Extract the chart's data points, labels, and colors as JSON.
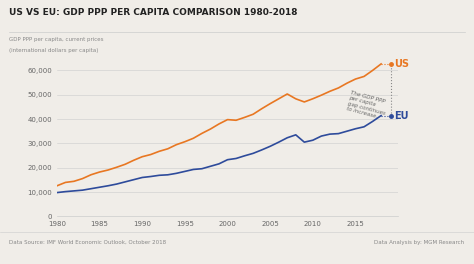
{
  "title": "US VS EU: GDP PPP PER CAPITA COMPARISON 1980-2018",
  "ylabel_line1": "GDP PPP per capita, current prices",
  "ylabel_line2": "(international dollars per capita)",
  "footnote_left": "Data Source: IMF World Economic Outlook, October 2018",
  "footnote_right": "Data Analysis by: MGM Research",
  "annotation_text": "The GDP PPP\nper capita\ngap continues\nto increase.",
  "background_color": "#f0ede8",
  "us_color": "#e87722",
  "eu_color": "#2e4b9b",
  "years": [
    1980,
    1981,
    1982,
    1983,
    1984,
    1985,
    1986,
    1987,
    1988,
    1989,
    1990,
    1991,
    1992,
    1993,
    1994,
    1995,
    1996,
    1997,
    1998,
    1999,
    2000,
    2001,
    2002,
    2003,
    2004,
    2005,
    2006,
    2007,
    2008,
    2009,
    2010,
    2011,
    2012,
    2013,
    2014,
    2015,
    2016,
    2017,
    2018
  ],
  "us_gdp": [
    12575,
    13976,
    14434,
    15543,
    17121,
    18237,
    19071,
    20189,
    21417,
    23059,
    24523,
    25419,
    26747,
    27776,
    29459,
    30681,
    32100,
    34102,
    35886,
    37973,
    39750,
    39480,
    40660,
    41950,
    44200,
    46302,
    48282,
    50270,
    48282,
    46999,
    48311,
    49782,
    51371,
    52750,
    54700,
    56400,
    57467,
    59927,
    62606
  ],
  "eu_gdp": [
    9800,
    10200,
    10500,
    10800,
    11400,
    12000,
    12600,
    13300,
    14200,
    15100,
    16000,
    16400,
    16900,
    17100,
    17700,
    18500,
    19300,
    19600,
    20600,
    21600,
    23300,
    23800,
    24900,
    25900,
    27300,
    28800,
    30500,
    32300,
    33500,
    30500,
    31300,
    33000,
    33800,
    34000,
    35000,
    36000,
    36800,
    39000,
    41400
  ],
  "ylim": [
    0,
    65000
  ],
  "yticks": [
    0,
    10000,
    20000,
    30000,
    40000,
    50000,
    60000
  ],
  "ytick_labels": [
    "0",
    "10,000",
    "20,000",
    "30,000",
    "40,000",
    "50,000",
    "60,000"
  ],
  "xlim": [
    1980,
    2020
  ],
  "xticks": [
    1980,
    1985,
    1990,
    1995,
    2000,
    2005,
    2010,
    2015
  ]
}
